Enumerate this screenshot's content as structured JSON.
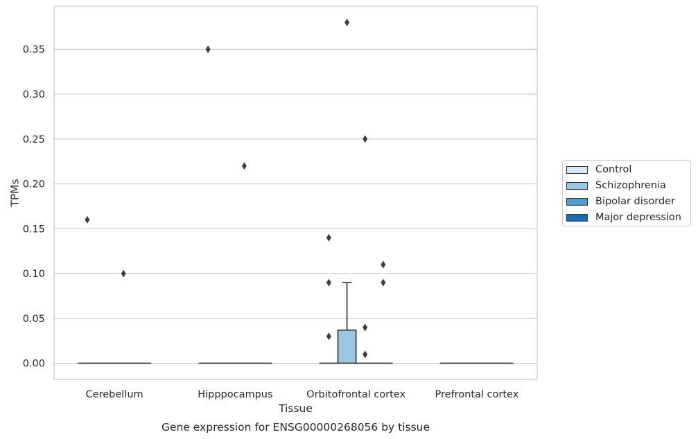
{
  "chart_data": {
    "type": "box",
    "title": "Gene expression for ENSG00000268056 by tissue",
    "xlabel": "Tissue",
    "ylabel": "TPMs",
    "ylim": [
      -0.018,
      0.398
    ],
    "yticks": [
      0.0,
      0.05,
      0.1,
      0.15,
      0.2,
      0.25,
      0.3,
      0.35
    ],
    "ytick_labels": [
      "0.00",
      "0.05",
      "0.10",
      "0.15",
      "0.20",
      "0.25",
      "0.30",
      "0.35"
    ],
    "grid": true,
    "legend_position": "right, outside",
    "categories": [
      "Cerebellum",
      "Hipppocampus",
      "Orbitofrontal cortex",
      "Prefrontal cortex"
    ],
    "series": [
      {
        "name": "Control",
        "color": "#d8e7f5",
        "boxes": [
          {
            "category": "Cerebellum",
            "q1": 0,
            "median": 0,
            "q3": 0,
            "whisker_low": 0,
            "whisker_high": 0,
            "outliers": [
              0.16
            ]
          },
          {
            "category": "Hipppocampus",
            "q1": 0,
            "median": 0,
            "q3": 0,
            "whisker_low": 0,
            "whisker_high": 0,
            "outliers": [
              0.35
            ]
          },
          {
            "category": "Orbitofrontal cortex",
            "q1": 0,
            "median": 0,
            "q3": 0,
            "whisker_low": 0,
            "whisker_high": 0,
            "outliers": [
              0.14,
              0.09,
              0.03
            ]
          },
          {
            "category": "Prefrontal cortex",
            "q1": 0,
            "median": 0,
            "q3": 0,
            "whisker_low": 0,
            "whisker_high": 0,
            "outliers": []
          }
        ]
      },
      {
        "name": "Schizophrenia",
        "color": "#9ac8e0",
        "boxes": [
          {
            "category": "Cerebellum",
            "q1": 0,
            "median": 0,
            "q3": 0,
            "whisker_low": 0,
            "whisker_high": 0,
            "outliers": []
          },
          {
            "category": "Hipppocampus",
            "q1": 0,
            "median": 0,
            "q3": 0,
            "whisker_low": 0,
            "whisker_high": 0,
            "outliers": []
          },
          {
            "category": "Orbitofrontal cortex",
            "q1": 0,
            "median": 0,
            "q3": 0.037,
            "whisker_low": 0,
            "whisker_high": 0.09,
            "outliers": [
              0.38
            ]
          },
          {
            "category": "Prefrontal cortex",
            "q1": 0,
            "median": 0,
            "q3": 0,
            "whisker_low": 0,
            "whisker_high": 0,
            "outliers": []
          }
        ]
      },
      {
        "name": "Bipolar disorder",
        "color": "#5299cc",
        "boxes": [
          {
            "category": "Cerebellum",
            "q1": 0,
            "median": 0,
            "q3": 0,
            "whisker_low": 0,
            "whisker_high": 0,
            "outliers": [
              0.1
            ]
          },
          {
            "category": "Hipppocampus",
            "q1": 0,
            "median": 0,
            "q3": 0,
            "whisker_low": 0,
            "whisker_high": 0,
            "outliers": [
              0.22
            ]
          },
          {
            "category": "Orbitofrontal cortex",
            "q1": 0,
            "median": 0,
            "q3": 0,
            "whisker_low": 0,
            "whisker_high": 0,
            "outliers": [
              0.25,
              0.04,
              0.01
            ]
          },
          {
            "category": "Prefrontal cortex",
            "q1": 0,
            "median": 0,
            "q3": 0,
            "whisker_low": 0,
            "whisker_high": 0,
            "outliers": []
          }
        ]
      },
      {
        "name": "Major depression",
        "color": "#1c6aaf",
        "boxes": [
          {
            "category": "Cerebellum",
            "q1": 0,
            "median": 0,
            "q3": 0,
            "whisker_low": 0,
            "whisker_high": 0,
            "outliers": []
          },
          {
            "category": "Hipppocampus",
            "q1": 0,
            "median": 0,
            "q3": 0,
            "whisker_low": 0,
            "whisker_high": 0,
            "outliers": []
          },
          {
            "category": "Orbitofrontal cortex",
            "q1": 0,
            "median": 0,
            "q3": 0,
            "whisker_low": 0,
            "whisker_high": 0,
            "outliers": [
              0.11,
              0.09
            ]
          },
          {
            "category": "Prefrontal cortex",
            "q1": 0,
            "median": 0,
            "q3": 0,
            "whisker_low": 0,
            "whisker_high": 0,
            "outliers": []
          }
        ]
      }
    ]
  }
}
